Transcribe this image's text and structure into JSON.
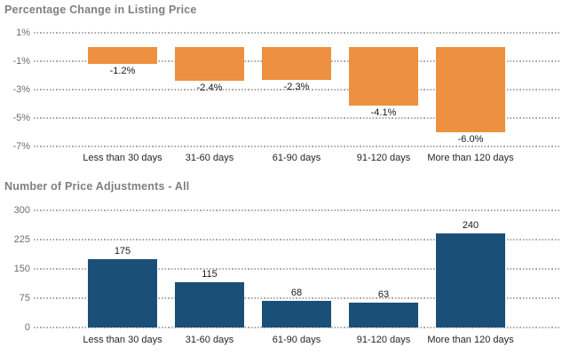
{
  "chart_data": [
    {
      "type": "bar",
      "title": "Percentage Change in Listing Price",
      "categories": [
        "Less than 30 days",
        "31-60 days",
        "61-90 days",
        "91-120 days",
        "More than 120 days"
      ],
      "values": [
        -1.2,
        -2.4,
        -2.3,
        -4.1,
        -6.0
      ],
      "value_labels": [
        "-1.2%",
        "-2.4%",
        "-2.3%",
        "-4.1%",
        "-6.0%"
      ],
      "ytick_labels": [
        "1%",
        "-1%",
        "-3%",
        "-5%",
        "-7%"
      ],
      "ytick_values": [
        1,
        -1,
        -3,
        -5,
        -7
      ],
      "ylim": [
        -7,
        1
      ],
      "xlabel": "",
      "ylabel": "",
      "grid": "dotted horizontal",
      "legend": "none",
      "bar_color": "#ED9140",
      "value_label_position": "below-bar"
    },
    {
      "type": "bar",
      "title": "Number of Price Adjustments - All",
      "categories": [
        "Less than 30 days",
        "31-60 days",
        "61-90 days",
        "91-120 days",
        "More than 120 days"
      ],
      "values": [
        175,
        115,
        68,
        63,
        240
      ],
      "value_labels": [
        "175",
        "115",
        "68",
        "63",
        "240"
      ],
      "ytick_labels": [
        "300",
        "225",
        "150",
        "75",
        "0"
      ],
      "ytick_values": [
        300,
        225,
        150,
        75,
        0
      ],
      "ylim": [
        0,
        300
      ],
      "xlabel": "",
      "ylabel": "",
      "grid": "dotted horizontal",
      "legend": "none",
      "bar_color": "#1A5078",
      "value_label_position": "above-bar"
    }
  ],
  "colors": {
    "background": "#ffffff",
    "title_text": "#7f7f7f",
    "ytick_text": "#6e6e6e",
    "category_text": "#262626",
    "value_label_text": "#1a1a1a",
    "gridline": "#a9a9a9",
    "orange_bar": "#ED9140",
    "blue_bar": "#1A5078"
  }
}
